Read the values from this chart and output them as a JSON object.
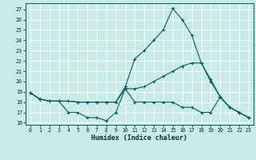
{
  "xlabel": "Humidex (Indice chaleur)",
  "xlim": [
    -0.5,
    23.5
  ],
  "ylim": [
    15.8,
    27.6
  ],
  "yticks": [
    16,
    17,
    18,
    19,
    20,
    21,
    22,
    23,
    24,
    25,
    26,
    27
  ],
  "xticks": [
    0,
    1,
    2,
    3,
    4,
    5,
    6,
    7,
    8,
    9,
    10,
    11,
    12,
    13,
    14,
    15,
    16,
    17,
    18,
    19,
    20,
    21,
    22,
    23
  ],
  "bg_color": "#c8ebe8",
  "line_color": "#006060",
  "grid_color": "#ffffff",
  "line1_x": [
    0,
    1,
    2,
    3,
    4,
    5,
    6,
    7,
    8,
    9,
    10,
    11,
    12,
    13,
    14,
    15,
    16,
    17,
    18,
    19,
    20,
    21,
    22,
    23
  ],
  "line1_y": [
    18.9,
    18.3,
    18.1,
    18.1,
    17.0,
    17.0,
    16.5,
    16.5,
    16.2,
    17.0,
    19.3,
    18.0,
    18.0,
    18.0,
    18.0,
    18.0,
    17.5,
    17.5,
    17.0,
    17.0,
    18.5,
    17.5,
    17.0,
    16.5
  ],
  "line2_x": [
    0,
    1,
    2,
    3,
    4,
    5,
    6,
    7,
    8,
    9,
    10,
    11,
    12,
    13,
    14,
    15,
    16,
    17,
    18,
    19,
    20,
    21,
    22,
    23
  ],
  "line2_y": [
    18.9,
    18.3,
    18.1,
    18.1,
    18.1,
    18.0,
    18.0,
    18.0,
    18.0,
    18.0,
    19.3,
    19.3,
    19.5,
    20.0,
    20.5,
    21.0,
    21.5,
    21.8,
    21.8,
    20.0,
    18.5,
    17.5,
    17.0,
    16.5
  ],
  "line3_x": [
    0,
    1,
    2,
    3,
    4,
    5,
    6,
    7,
    8,
    9,
    10,
    11,
    12,
    13,
    14,
    15,
    16,
    17,
    18,
    19,
    20,
    21,
    22,
    23
  ],
  "line3_y": [
    18.9,
    18.3,
    18.1,
    18.1,
    18.1,
    18.0,
    18.0,
    18.0,
    18.0,
    18.0,
    19.5,
    22.2,
    23.0,
    24.0,
    25.0,
    27.1,
    26.0,
    24.5,
    21.8,
    20.2,
    18.5,
    17.5,
    17.0,
    16.5
  ]
}
